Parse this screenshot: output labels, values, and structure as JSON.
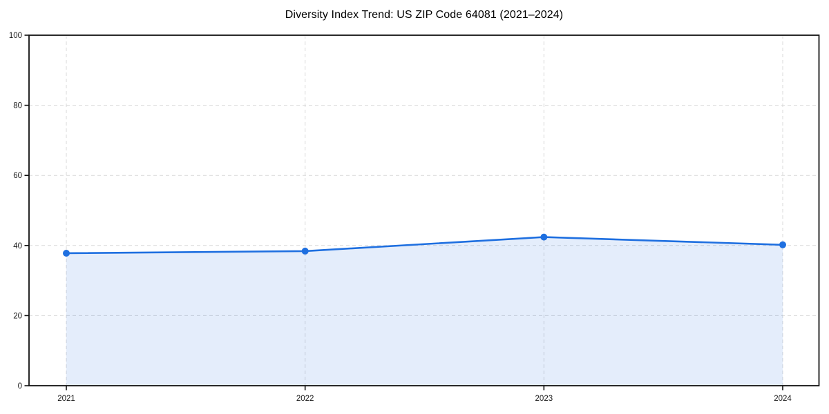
{
  "chart_data": {
    "type": "area",
    "title": "Diversity Index Trend: US ZIP Code 64081 (2021–2024)",
    "x": [
      2021,
      2022,
      2023,
      2024
    ],
    "series": [
      {
        "name": "Diversity Index",
        "values": [
          37.8,
          38.4,
          42.4,
          40.2
        ]
      }
    ],
    "xlabel": "",
    "ylabel": "",
    "ylim": [
      0,
      100
    ],
    "yticks": [
      0,
      20,
      40,
      60,
      80,
      100
    ],
    "ytick_labels": [
      "0",
      "20",
      "40",
      "60",
      "80",
      "100"
    ],
    "xtick_labels": [
      "2021",
      "2022",
      "2023",
      "2024"
    ],
    "grid": "dashed horizontal and vertical gridlines",
    "legend_position": "none",
    "marker_style": "filled circle on each data point",
    "colors": {
      "line": "#1E6FE0",
      "marker": "#1E6FE0",
      "area_fill": "#1E6FE0",
      "area_fill_opacity": "0.12",
      "grid": "#D9D9D9",
      "spine": "#111111",
      "tick_label": "#1A1A1A",
      "title": "#000000",
      "background": "#FFFFFF"
    }
  }
}
